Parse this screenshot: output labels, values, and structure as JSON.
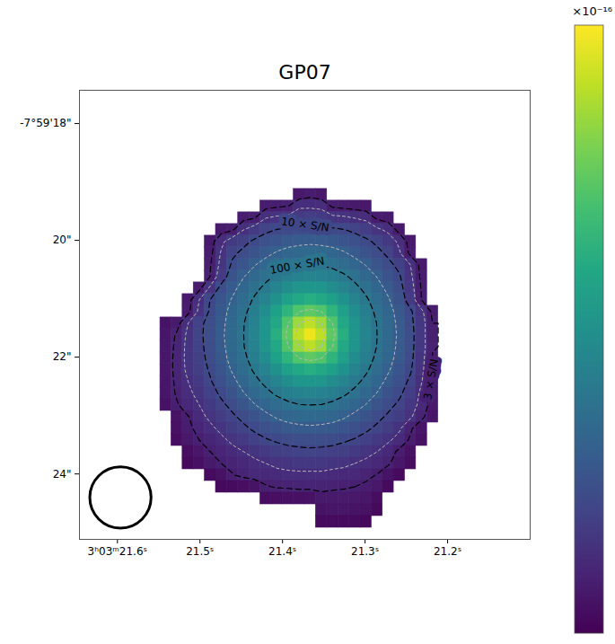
{
  "chart_data": {
    "type": "heatmap",
    "title": "GP07",
    "color": "viridis",
    "xlim": [
      21.646,
      21.1
    ],
    "ylim": [
      17.43,
      25.12
    ],
    "xticks": [
      {
        "value": 21.6,
        "label": "3ʰ03ᵐ21.6ˢ"
      },
      {
        "value": 21.5,
        "label": "21.5ˢ"
      },
      {
        "value": 21.4,
        "label": "21.4ˢ"
      },
      {
        "value": 21.3,
        "label": "21.3ˢ"
      },
      {
        "value": 21.2,
        "label": "21.2ˢ"
      }
    ],
    "yticks": [
      {
        "value": 18,
        "label": "-7°59'18\""
      },
      {
        "value": 20,
        "label": "20\""
      },
      {
        "value": 22,
        "label": "22\""
      },
      {
        "value": 24,
        "label": "24\""
      }
    ],
    "colorbar": {
      "range": [
        0,
        4
      ],
      "label": "×10⁻¹⁶"
    },
    "contours": [
      {
        "level": 0.35,
        "label": "3 × S/N"
      },
      {
        "level": 0.85,
        "label": "10 × S/N"
      },
      {
        "level": 1.55,
        "label": "100 × S/N"
      }
    ],
    "minor_contours": [
      0.55,
      1.2,
      2.9,
      3.4
    ],
    "beam_diameter": 1.05,
    "cells": {
      "ra_start": 21.548,
      "ra_step": -0.013464,
      "dec_start": 19.12,
      "dec_step": 0.2,
      "rows": [
        {
          "first_col": 12,
          "values": [
            0.25,
            0.3,
            0.25
          ]
        },
        {
          "first_col": 9,
          "values": [
            0.3,
            0.33,
            0.36,
            0.52,
            0.52,
            0.5,
            0.33,
            0.3,
            0.28,
            0.25
          ]
        },
        {
          "first_col": 7,
          "values": [
            0.3,
            0.35,
            0.55,
            0.6,
            0.62,
            0.7,
            0.72,
            0.7,
            0.62,
            0.6,
            0.55,
            0.5,
            0.32,
            0.27
          ]
        },
        {
          "first_col": 5,
          "values": [
            0.28,
            0.33,
            0.55,
            0.68,
            0.8,
            0.86,
            0.9,
            0.93,
            0.95,
            0.93,
            0.9,
            0.86,
            0.8,
            0.72,
            0.6,
            0.5,
            0.28
          ]
        },
        {
          "first_col": 4,
          "values": [
            0.27,
            0.5,
            0.68,
            0.78,
            0.9,
            0.97,
            1.05,
            1.1,
            1.13,
            1.15,
            1.13,
            1.1,
            1.05,
            0.97,
            0.9,
            0.8,
            0.68,
            0.5,
            0.27
          ]
        },
        {
          "first_col": 4,
          "values": [
            0.3,
            0.58,
            0.8,
            0.92,
            1.03,
            1.13,
            1.23,
            1.3,
            1.34,
            1.35,
            1.34,
            1.3,
            1.23,
            1.13,
            1.03,
            0.92,
            0.8,
            0.58,
            0.3
          ]
        },
        {
          "first_col": 4,
          "values": [
            0.34,
            0.62,
            0.9,
            1.05,
            1.19,
            1.31,
            1.4,
            1.48,
            1.54,
            1.55,
            1.54,
            1.48,
            1.4,
            1.31,
            1.19,
            1.05,
            0.92,
            0.78,
            0.55,
            0.28
          ]
        },
        {
          "first_col": 4,
          "values": [
            0.36,
            0.7,
            1.02,
            1.19,
            1.33,
            1.47,
            1.6,
            1.7,
            1.78,
            1.8,
            1.78,
            1.7,
            1.6,
            1.47,
            1.33,
            1.19,
            1.03,
            0.88,
            0.6,
            0.3
          ]
        },
        {
          "first_col": 3,
          "values": [
            0.3,
            0.6,
            0.95,
            1.13,
            1.31,
            1.47,
            1.63,
            1.8,
            1.95,
            2.08,
            2.1,
            2.08,
            1.95,
            1.8,
            1.63,
            1.47,
            1.31,
            1.13,
            0.95,
            0.65,
            0.33
          ]
        },
        {
          "first_col": 2,
          "values": [
            0.28,
            0.55,
            0.86,
            1.05,
            1.23,
            1.4,
            1.6,
            1.8,
            2.04,
            2.25,
            2.4,
            2.5,
            2.4,
            2.25,
            2.04,
            1.8,
            1.6,
            1.4,
            1.23,
            1.02,
            0.7,
            0.35
          ]
        },
        {
          "first_col": 2,
          "values": [
            0.3,
            0.6,
            0.9,
            1.1,
            1.3,
            1.48,
            1.7,
            1.95,
            2.25,
            2.6,
            2.9,
            3.0,
            2.9,
            2.6,
            2.25,
            1.95,
            1.7,
            1.48,
            1.3,
            1.1,
            0.9,
            0.6,
            0.3
          ]
        },
        {
          "first_col": 0,
          "values": [
            0.2,
            0.28,
            0.55,
            0.79,
            0.94,
            1.13,
            1.34,
            1.54,
            1.78,
            2.08,
            2.4,
            2.9,
            3.4,
            3.6,
            3.4,
            2.9,
            2.4,
            2.08,
            1.78,
            1.54,
            1.34,
            1.13,
            0.92,
            0.65,
            0.35
          ]
        },
        {
          "first_col": 0,
          "values": [
            0.22,
            0.38,
            0.6,
            0.8,
            0.95,
            1.15,
            1.35,
            1.55,
            1.8,
            2.1,
            2.5,
            3.0,
            3.6,
            3.9,
            3.6,
            3.0,
            2.5,
            2.1,
            1.8,
            1.55,
            1.35,
            1.15,
            0.95,
            0.65,
            0.35
          ]
        },
        {
          "first_col": 0,
          "values": [
            0.24,
            0.4,
            0.62,
            0.79,
            0.94,
            1.13,
            1.34,
            1.54,
            1.78,
            2.08,
            2.4,
            2.9,
            3.4,
            3.6,
            3.4,
            2.9,
            2.4,
            2.08,
            1.78,
            1.54,
            1.34,
            1.13,
            0.94,
            0.65,
            0.36
          ]
        },
        {
          "first_col": 0,
          "values": [
            0.24,
            0.42,
            0.62,
            0.77,
            0.92,
            1.1,
            1.3,
            1.48,
            1.7,
            1.95,
            2.25,
            2.6,
            2.9,
            3.0,
            2.9,
            2.6,
            2.25,
            1.95,
            1.7,
            1.48,
            1.3,
            1.1,
            0.92,
            0.62,
            0.34
          ]
        },
        {
          "first_col": 0,
          "values": [
            0.24,
            0.42,
            0.6,
            0.74,
            0.88,
            1.05,
            1.23,
            1.4,
            1.6,
            1.8,
            2.04,
            2.25,
            2.4,
            2.5,
            2.4,
            2.25,
            2.04,
            1.8,
            1.6,
            1.4,
            1.23,
            1.05,
            0.88,
            0.6,
            0.33
          ]
        },
        {
          "first_col": 0,
          "values": [
            0.23,
            0.4,
            0.55,
            0.68,
            0.83,
            0.97,
            1.13,
            1.31,
            1.47,
            1.63,
            1.8,
            1.95,
            2.08,
            2.1,
            2.08,
            1.95,
            1.8,
            1.63,
            1.47,
            1.31,
            1.13,
            0.97,
            0.8,
            0.56,
            0.3
          ]
        },
        {
          "first_col": 0,
          "values": [
            0.22,
            0.38,
            0.5,
            0.62,
            0.75,
            0.9,
            1.03,
            1.19,
            1.33,
            1.47,
            1.6,
            1.7,
            1.78,
            1.8,
            1.78,
            1.7,
            1.6,
            1.47,
            1.33,
            1.19,
            1.03,
            0.9,
            0.72,
            0.5,
            0.28
          ]
        },
        {
          "first_col": 0,
          "values": [
            0.18,
            0.33,
            0.45,
            0.55,
            0.68,
            0.8,
            0.92,
            1.05,
            1.19,
            1.31,
            1.4,
            1.48,
            1.54,
            1.55,
            1.54,
            1.48,
            1.4,
            1.31,
            1.19,
            1.05,
            0.92,
            0.8,
            0.65,
            0.48,
            0.25
          ]
        },
        {
          "first_col": 1,
          "values": [
            0.2,
            0.34,
            0.48,
            0.6,
            0.71,
            0.81,
            0.92,
            1.03,
            1.13,
            1.23,
            1.3,
            1.34,
            1.35,
            1.34,
            1.3,
            1.23,
            1.13,
            1.03,
            0.92,
            0.81,
            0.71,
            0.58,
            0.4,
            0.22
          ]
        },
        {
          "first_col": 1,
          "values": [
            0.18,
            0.3,
            0.42,
            0.5,
            0.61,
            0.71,
            0.8,
            0.9,
            0.97,
            1.05,
            1.1,
            1.13,
            1.15,
            1.13,
            1.1,
            1.05,
            0.97,
            0.9,
            0.8,
            0.71,
            0.58,
            0.38,
            0.22
          ]
        },
        {
          "first_col": 1,
          "values": [
            0.14,
            0.25,
            0.35,
            0.43,
            0.5,
            0.6,
            0.68,
            0.75,
            0.83,
            0.88,
            0.92,
            0.94,
            0.95,
            0.94,
            0.92,
            0.88,
            0.83,
            0.75,
            0.68,
            0.58,
            0.48,
            0.32,
            0.18
          ]
        },
        {
          "first_col": 2,
          "values": [
            0.14,
            0.24,
            0.35,
            0.42,
            0.48,
            0.55,
            0.62,
            0.68,
            0.74,
            0.77,
            0.79,
            0.8,
            0.79,
            0.77,
            0.74,
            0.68,
            0.62,
            0.55,
            0.45,
            0.3,
            0.18
          ]
        },
        {
          "first_col": 2,
          "values": [
            0.1,
            0.16,
            0.28,
            0.35,
            0.4,
            0.45,
            0.5,
            0.55,
            0.6,
            0.62,
            0.65,
            0.65,
            0.65,
            0.62,
            0.6,
            0.55,
            0.5,
            0.45,
            0.38,
            0.24,
            0.14
          ]
        },
        {
          "first_col": 4,
          "values": [
            0.12,
            0.18,
            0.34,
            0.4,
            0.44,
            0.46,
            0.48,
            0.5,
            0.5,
            0.5,
            0.5,
            0.48,
            0.46,
            0.44,
            0.4,
            0.34,
            0.2,
            0.12
          ]
        },
        {
          "first_col": 5,
          "values": [
            0.1,
            0.12,
            0.15,
            0.2,
            0.33,
            0.37,
            0.38,
            0.4,
            0.4,
            0.4,
            0.38,
            0.37,
            0.35,
            0.31,
            0.26,
            0.12
          ]
        },
        {
          "first_col": 9,
          "values": [
            0.14,
            0.15,
            0.16,
            0.17,
            0.18,
            0.28,
            0.28,
            0.27,
            0.26,
            0.24,
            0.14
          ]
        },
        {
          "first_col": 14,
          "values": [
            0.2,
            0.22,
            0.22,
            0.2,
            0.18,
            0.1
          ]
        },
        {
          "first_col": 14,
          "values": [
            0.1,
            0.12,
            0.12,
            0.1,
            0.08
          ]
        }
      ]
    }
  }
}
